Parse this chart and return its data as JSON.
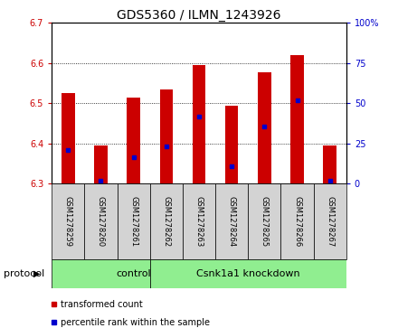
{
  "title": "GDS5360 / ILMN_1243926",
  "samples": [
    "GSM1278259",
    "GSM1278260",
    "GSM1278261",
    "GSM1278262",
    "GSM1278263",
    "GSM1278264",
    "GSM1278265",
    "GSM1278266",
    "GSM1278267"
  ],
  "bar_bottoms": [
    6.3,
    6.3,
    6.3,
    6.3,
    6.3,
    6.3,
    6.3,
    6.3,
    6.3
  ],
  "bar_tops": [
    6.525,
    6.395,
    6.515,
    6.535,
    6.595,
    6.495,
    6.578,
    6.62,
    6.395
  ],
  "percentile_values": [
    6.383,
    6.308,
    6.366,
    6.393,
    6.466,
    6.343,
    6.443,
    6.508,
    6.308
  ],
  "ylim": [
    6.3,
    6.7
  ],
  "yticks_left": [
    6.3,
    6.4,
    6.5,
    6.6,
    6.7
  ],
  "yticks_right": [
    0,
    25,
    50,
    75,
    100
  ],
  "bar_color": "#cc0000",
  "percentile_color": "#0000cc",
  "bar_width": 0.4,
  "control_count": 3,
  "knockdown_count": 6,
  "protocol_label": "protocol",
  "control_label": "control",
  "knockdown_label": "Csnk1a1 knockdown",
  "group_color": "#90ee90",
  "legend_entries": [
    {
      "label": "transformed count",
      "color": "#cc0000"
    },
    {
      "label": "percentile rank within the sample",
      "color": "#0000cc"
    }
  ],
  "left_tick_color": "#cc0000",
  "right_tick_color": "#0000cc",
  "sample_box_color": "#d3d3d3",
  "title_fontsize": 10,
  "tick_fontsize": 7,
  "sample_fontsize": 6,
  "legend_fontsize": 7,
  "protocol_fontsize": 8,
  "group_fontsize": 8
}
